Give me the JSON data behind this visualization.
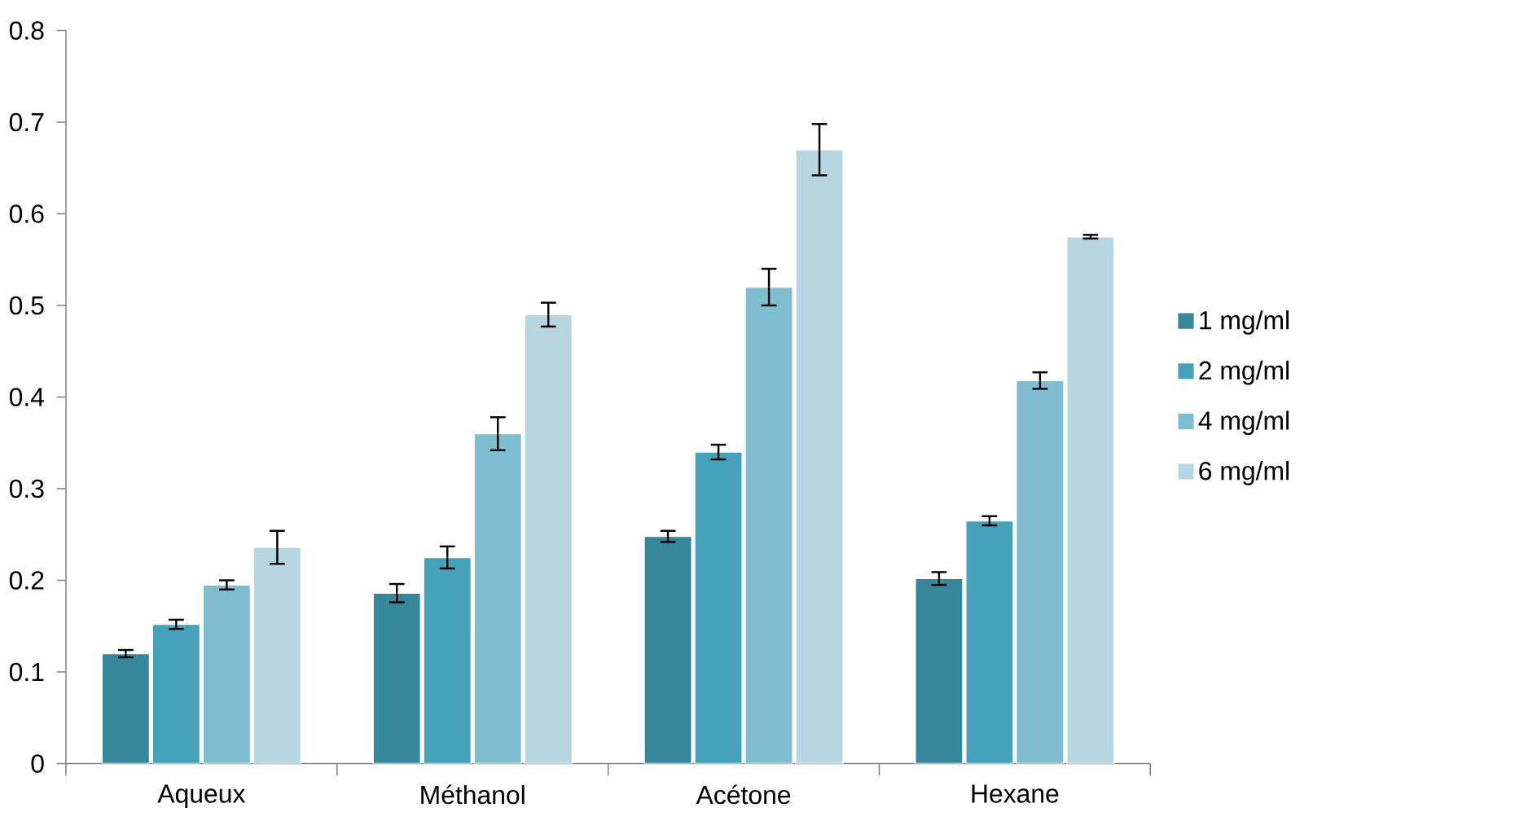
{
  "chart_data": {
    "type": "bar",
    "categories": [
      "Aqueux",
      "Méthanol",
      "Acétone",
      "Hexane"
    ],
    "series": [
      {
        "name": "1 mg/ml",
        "color": "#37879b",
        "values": [
          0.12,
          0.186,
          0.248,
          0.202
        ],
        "errors": [
          0.004,
          0.01,
          0.006,
          0.007
        ]
      },
      {
        "name": "2 mg/ml",
        "color": "#45a2ba",
        "values": [
          0.152,
          0.225,
          0.34,
          0.265
        ],
        "errors": [
          0.005,
          0.012,
          0.008,
          0.005
        ]
      },
      {
        "name": "4 mg/ml",
        "color": "#7fbdd0",
        "values": [
          0.195,
          0.36,
          0.52,
          0.418
        ],
        "errors": [
          0.005,
          0.018,
          0.02,
          0.009
        ]
      },
      {
        "name": "6 mg/ml",
        "color": "#b8d6e1",
        "values": [
          0.236,
          0.49,
          0.67,
          0.575
        ],
        "errors": [
          0.018,
          0.013,
          0.028,
          0.002
        ]
      }
    ],
    "ylim": [
      0,
      0.8
    ],
    "yticks": [
      0,
      0.1,
      0.2,
      0.3,
      0.4,
      0.5,
      0.6,
      0.7,
      0.8
    ],
    "legend": "right"
  }
}
